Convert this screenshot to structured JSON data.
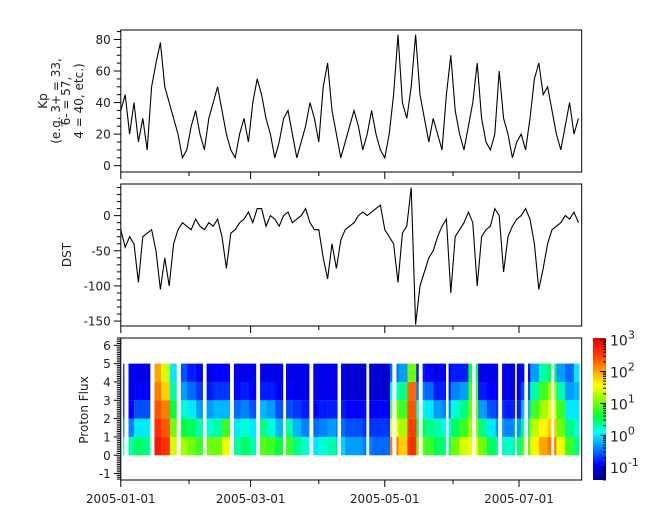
{
  "chart_data": [
    {
      "type": "line",
      "panel": "kp",
      "ylabel_lines": [
        "Kp",
        "(e.g. 3+ = 33,",
        "6- = 57,",
        "4 = 40, etc.)"
      ],
      "ylim": [
        -4,
        86
      ],
      "yticks": [
        "0",
        "20",
        "40",
        "60",
        "80"
      ],
      "x_start": "2005-01-01",
      "x_step_days": 2,
      "values": [
        35,
        45,
        20,
        40,
        15,
        30,
        10,
        50,
        65,
        78,
        50,
        40,
        30,
        20,
        5,
        10,
        25,
        35,
        20,
        10,
        30,
        40,
        50,
        35,
        20,
        10,
        5,
        20,
        30,
        15,
        40,
        55,
        45,
        30,
        20,
        5,
        15,
        30,
        35,
        20,
        5,
        15,
        25,
        40,
        30,
        15,
        50,
        65,
        35,
        20,
        5,
        15,
        25,
        35,
        25,
        10,
        20,
        35,
        20,
        10,
        5,
        20,
        45,
        83,
        40,
        30,
        50,
        83,
        45,
        30,
        15,
        30,
        20,
        10,
        45,
        70,
        35,
        20,
        10,
        25,
        40,
        65,
        30,
        15,
        10,
        20,
        60,
        30,
        20,
        5,
        15,
        20,
        10,
        30,
        55,
        65,
        45,
        50,
        35,
        20,
        10,
        25,
        40,
        20,
        30
      ]
    },
    {
      "type": "line",
      "panel": "dst",
      "ylabel": "DST",
      "ylim": [
        -157,
        45
      ],
      "yticks": [
        "0",
        "-50",
        "-100",
        "-150"
      ],
      "x_start": "2005-01-01",
      "x_step_days": 2,
      "values": [
        -20,
        -45,
        -30,
        -40,
        -95,
        -30,
        -25,
        -20,
        -50,
        -105,
        -60,
        -100,
        -40,
        -20,
        -10,
        -15,
        -20,
        -5,
        -15,
        -20,
        -10,
        -15,
        -5,
        -30,
        -75,
        -25,
        -20,
        -10,
        -5,
        5,
        -10,
        10,
        10,
        -15,
        0,
        -5,
        -15,
        0,
        5,
        -10,
        -5,
        0,
        10,
        -10,
        -20,
        -20,
        -60,
        -90,
        -40,
        -75,
        -35,
        -20,
        -15,
        -10,
        0,
        5,
        0,
        5,
        10,
        15,
        -20,
        -30,
        -40,
        -95,
        -25,
        -15,
        40,
        -155,
        -100,
        -80,
        -60,
        -50,
        -30,
        -15,
        -5,
        -110,
        -30,
        -20,
        -10,
        5,
        -10,
        -100,
        -30,
        -20,
        -15,
        10,
        0,
        -80,
        -30,
        -15,
        -5,
        0,
        10,
        -5,
        -40,
        -105,
        -75,
        -40,
        -20,
        -15,
        -10,
        0,
        -5,
        5,
        -10
      ]
    },
    {
      "type": "heatmap",
      "panel": "proton-flux",
      "ylabel": "Proton Flux",
      "ylim": [
        -1.35,
        6.4
      ],
      "yticks": [
        "-1",
        "0",
        "1",
        "2",
        "3",
        "4",
        "5",
        "6"
      ],
      "bins": [
        [
          0,
          1
        ],
        [
          1,
          2
        ],
        [
          2,
          3
        ],
        [
          3,
          4
        ],
        [
          4,
          5
        ]
      ],
      "x_start": "2005-01-01",
      "x_step_days": 4,
      "coverage_days": [
        [
          1.1,
          1.5
        ],
        [
          3.5,
          13.3
        ],
        [
          15.3,
          25.3
        ],
        [
          27.3,
          37.2
        ],
        [
          39.0,
          49.5
        ],
        [
          51.4,
          61.4
        ],
        [
          63.3,
          73.7
        ],
        [
          75.1,
          85.6
        ],
        [
          87.5,
          98.4
        ],
        [
          100.1,
          111.5
        ],
        [
          112.9,
          123.3
        ],
        [
          125.3,
          135.3
        ],
        [
          137.2,
          147.7
        ],
        [
          149.0,
          159.5
        ],
        [
          161.4,
          171.4
        ],
        [
          173.3,
          179.1
        ],
        [
          180.0,
          183.3
        ],
        [
          185.1,
          195.6
        ],
        [
          197.0,
          208.4
        ]
      ],
      "log10_flux": [
        [
          0.3,
          -0.5,
          -0.9,
          -1,
          -1
        ],
        [
          0.3,
          -0.4,
          -0.9,
          -1,
          -1
        ],
        [
          0.5,
          0,
          -0.6,
          -0.9,
          -1
        ],
        [
          0.4,
          0,
          -0.6,
          -0.9,
          -1
        ],
        [
          2.8,
          2.6,
          2.4,
          2.2,
          2.0
        ],
        [
          2.6,
          2.4,
          2.2,
          1.8,
          1.4
        ],
        [
          1.4,
          1,
          0.6,
          0.3,
          0
        ],
        [
          1.2,
          0.6,
          0.2,
          -0.3,
          -0.6
        ],
        [
          1.0,
          0.5,
          0,
          -0.5,
          -0.8
        ],
        [
          0.8,
          0.3,
          -0.3,
          -0.7,
          -0.9
        ],
        [
          1.0,
          0.2,
          -0.3,
          -0.8,
          -1
        ],
        [
          1.0,
          0.3,
          -0.2,
          -0.7,
          -0.9
        ],
        [
          1.5,
          0.8,
          -0.2,
          -0.7,
          -0.9
        ],
        [
          0.3,
          0,
          -0.5,
          -0.9,
          -1
        ],
        [
          0.5,
          0.2,
          -0.4,
          -0.8,
          -1
        ],
        [
          0.3,
          0,
          -0.6,
          -0.9,
          -1
        ],
        [
          0.9,
          0.4,
          -0.2,
          -0.8,
          -1
        ],
        [
          0.8,
          0.2,
          -0.3,
          -0.8,
          -1
        ],
        [
          0.6,
          -0.2,
          -0.6,
          -0.9,
          -1
        ],
        [
          0.8,
          0.3,
          -0.6,
          -0.9,
          -1
        ],
        [
          0.4,
          -0.2,
          -0.7,
          -1,
          -1
        ],
        [
          0.2,
          -0.4,
          -0.8,
          -1,
          -1
        ],
        [
          0.0,
          -0.5,
          -0.9,
          -1,
          -1
        ],
        [
          0.2,
          -0.4,
          -0.8,
          -1,
          -1
        ],
        [
          0.3,
          -0.3,
          -0.8,
          -1,
          -1
        ],
        [
          -0.1,
          -0.5,
          -0.8,
          -1,
          -1
        ],
        [
          -0.3,
          -0.6,
          -0.9,
          -1.1,
          -1.1
        ],
        [
          -0.3,
          -0.6,
          -0.9,
          -1.1,
          -1.1
        ],
        [
          -0.4,
          -0.7,
          -0.9,
          -1.1,
          -1.1
        ],
        [
          -0.5,
          -0.7,
          -0.9,
          -1.1,
          -1.1
        ],
        [
          -0.5,
          -0.7,
          -0.9,
          -1.1,
          -1.1
        ],
        [
          2.2,
          1.6,
          1.0,
          0.2,
          -0.5
        ],
        [
          1.8,
          1.2,
          0.8,
          0.4,
          -0.3
        ],
        [
          2.6,
          2.5,
          2.4,
          2.3,
          1.0
        ],
        [
          1.0,
          0.6,
          0.2,
          -0.4,
          -0.8
        ],
        [
          0.8,
          0.4,
          0.0,
          -0.5,
          -0.9
        ],
        [
          0.5,
          0.3,
          -0.3,
          -0.8,
          -1
        ],
        [
          0.4,
          0.1,
          -0.4,
          -0.8,
          -1
        ],
        [
          1.0,
          0.5,
          0.2,
          -0.4,
          -0.8
        ],
        [
          1.4,
          0.8,
          0.4,
          -0.3,
          -0.8
        ],
        [
          1.5,
          1.2,
          1.0,
          0.8,
          0.6
        ],
        [
          1.0,
          0.4,
          -0.3,
          -0.8,
          -1
        ],
        [
          0.5,
          0,
          -0.6,
          -0.9,
          -1
        ],
        [
          0.3,
          -0.3,
          -0.7,
          -1,
          -1
        ],
        [
          0.2,
          -0.4,
          -0.8,
          -1,
          -1
        ],
        [
          0.4,
          -0.3,
          -0.8,
          -1,
          -1
        ],
        [
          0.9,
          0.4,
          -0.2,
          -0.6,
          -0.9
        ],
        [
          1.6,
          1.3,
          0.8,
          0.3,
          -0.3
        ],
        [
          2.0,
          1.6,
          1.2,
          0.8,
          0.3
        ],
        [
          2.2,
          1.8,
          1.5,
          1.2,
          0.5
        ],
        [
          1.5,
          1.0,
          0.8,
          0.3,
          -0.3
        ],
        [
          0.8,
          0.4,
          0.0,
          -0.3,
          -0.5
        ],
        [
          0.4,
          0.2,
          0.0,
          -0.2,
          0.0
        ]
      ],
      "colorbar": {
        "scale": "log",
        "range_log10": [
          -1.4,
          3.05
        ],
        "tick_exponents": [
          "-1",
          "0",
          "1",
          "2",
          "3"
        ],
        "tick_base": "10",
        "colormap": [
          "#00008c",
          "#0000ff",
          "#0080ff",
          "#00ffff",
          "#00ff40",
          "#80ff00",
          "#ffff00",
          "#ff9900",
          "#ff3300",
          "#e00000"
        ]
      }
    }
  ],
  "x_axis": {
    "xlim": [
      "2005-01-01",
      "2005-07-29"
    ],
    "major_ticks": [
      {
        "date": "2005-01-01",
        "label": "2005-01-01"
      },
      {
        "date": "2005-03-01",
        "label": "2005-03-01"
      },
      {
        "date": "2005-05-01",
        "label": "2005-05-01"
      },
      {
        "date": "2005-07-01",
        "label": "2005-07-01"
      }
    ],
    "minor_ticks": [
      "2005-02-01",
      "2005-04-01",
      "2005-06-01"
    ]
  }
}
